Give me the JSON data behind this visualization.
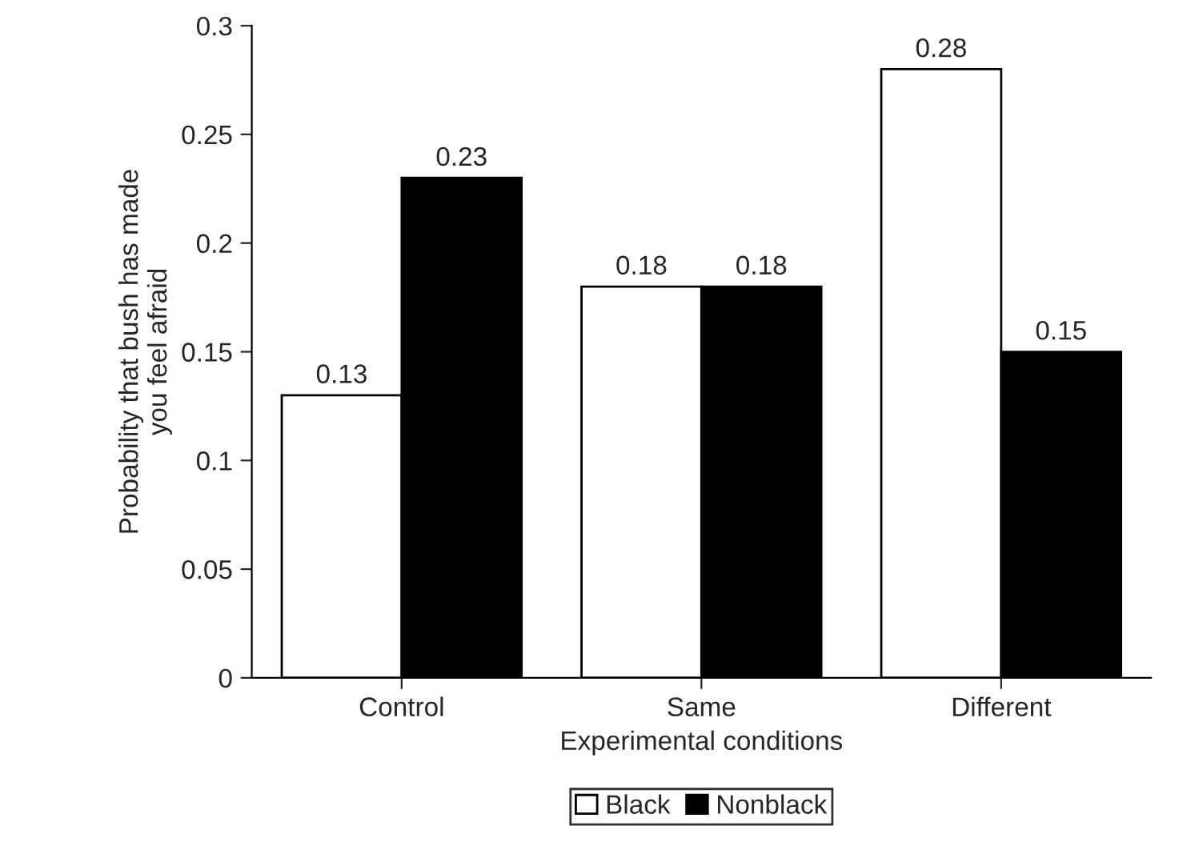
{
  "chart_data": {
    "type": "bar",
    "xlabel": "Experimental conditions",
    "ylabel": "Probability that bush has made\nyou feel afraid",
    "categories": [
      "Control",
      "Same",
      "Different"
    ],
    "series": [
      {
        "name": "Black",
        "color": "#ffffff",
        "values": [
          0.13,
          0.18,
          0.28
        ]
      },
      {
        "name": "Nonblack",
        "color": "#000000",
        "values": [
          0.23,
          0.18,
          0.15
        ]
      }
    ],
    "ylim": [
      0,
      0.3
    ],
    "yticks": [
      0,
      0.05,
      0.1,
      0.15,
      0.2,
      0.25,
      0.3
    ],
    "data_labels": true,
    "legend": "bottom",
    "grid": false
  }
}
